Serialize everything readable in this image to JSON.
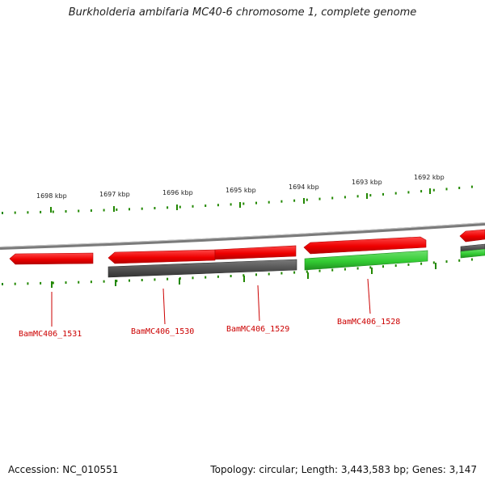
{
  "title": "Burkholderia ambifaria MC40-6 chromosome 1, complete genome",
  "footer": {
    "accession": "Accession: NC_010551",
    "summary": "Topology: circular; Length: 3,443,583 bp; Genes: 3,147"
  },
  "scale_ticks": [
    {
      "label": "1698 kbp"
    },
    {
      "label": "1697 kbp"
    },
    {
      "label": "1696 kbp"
    },
    {
      "label": "1695 kbp"
    },
    {
      "label": "1694 kbp"
    },
    {
      "label": "1693 kbp"
    },
    {
      "label": "1692 kbp"
    }
  ],
  "genes": [
    {
      "label": "BamMC406_1531",
      "color": "#ff0000",
      "strand": "forward"
    },
    {
      "label": "BamMC406_1530",
      "color": "#ff0000",
      "strand": "forward"
    },
    {
      "label": "BamMC406_1529",
      "color": "#ff0000",
      "strand": "forward"
    },
    {
      "label": "BamMC406_1528",
      "color": "#ff0000",
      "strand": "forward"
    }
  ],
  "colors": {
    "cds": "#ff0000",
    "gene_gray": "#555555",
    "gene_green": "#33cc33",
    "ticks": "#228800",
    "backbone": "#888888",
    "labels": "#cc0000"
  }
}
